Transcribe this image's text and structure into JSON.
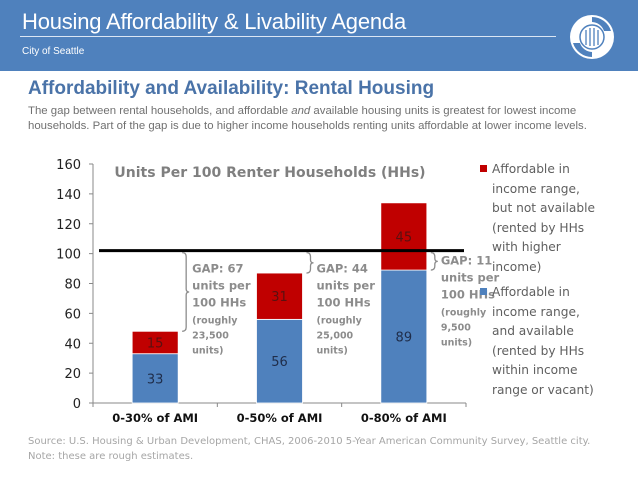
{
  "header": {
    "title": "Housing Affordability & Livability Agenda",
    "subtitle": "City of Seattle",
    "logo_icon": "city-of-seattle-seal-icon",
    "background_color": "#4f81bd"
  },
  "slide": {
    "title": "Affordability and Availability: Rental Housing",
    "intro_part1": "The gap between rental households, and affordable ",
    "intro_emphasis": "and",
    "intro_part2": " available housing units is greatest for lowest income households. Part of the gap is due to higher income households renting units affordable at lower income levels."
  },
  "chart_data": {
    "type": "bar",
    "stacked": true,
    "title": "Units Per 100 Renter Households (HHs)",
    "xlabel": "",
    "ylabel": "",
    "ylim": [
      0,
      160
    ],
    "yticks": [
      0,
      20,
      40,
      60,
      80,
      100,
      120,
      140,
      160
    ],
    "grid": false,
    "categories": [
      "0-30% of AMI",
      "0-50% of AMI",
      "0-80% of AMI"
    ],
    "series": [
      {
        "name": "Affordable in income range, and available (rented by HHs within income range or vacant)",
        "color": "#4f81bd",
        "label_color": "#1f2d4a",
        "values": [
          33,
          56,
          89
        ]
      },
      {
        "name": "Affordable in income range, but not available (rented by HHs with higher income)",
        "color": "#c00000",
        "label_color": "#5a1010",
        "values": [
          15,
          31,
          45
        ]
      }
    ],
    "reference_line": {
      "value": 100,
      "color": "#000000"
    },
    "annotations": [
      {
        "category": "0-30% of AMI",
        "lines": [
          "GAP: 67",
          "units per",
          "100 HHs",
          "(roughly",
          "23,500",
          "units)"
        ]
      },
      {
        "category": "0-50% of AMI",
        "lines": [
          "GAP: 44",
          "units per",
          "100 HHs",
          "(roughly",
          "25,000",
          "units)"
        ]
      },
      {
        "category": "0-80% of AMI",
        "lines": [
          "GAP: 11",
          "units per",
          "100 HHs",
          "(roughly",
          "9,500",
          "units)"
        ]
      }
    ],
    "legend_position": "right",
    "legend": [
      {
        "label": "Affordable in income range, but not available (rented by HHs with higher income)",
        "color": "#c00000"
      },
      {
        "label": "Affordable in income range, and available (rented by HHs within income range or vacant)",
        "color": "#4f81bd"
      }
    ]
  },
  "legend_text": [
    [
      "Affordable in",
      "income range,",
      "but not available",
      "(rented by HHs",
      "with higher",
      "income)"
    ],
    [
      "Affordable in",
      "income range,",
      "and available",
      "(rented by HHs",
      "within income",
      "range or vacant)"
    ]
  ],
  "footer": {
    "source": "Source: U.S. Housing & Urban Development, CHAS, 2006-2010 5-Year American Community Survey, Seattle city.",
    "note": "Note: these are rough estimates."
  }
}
